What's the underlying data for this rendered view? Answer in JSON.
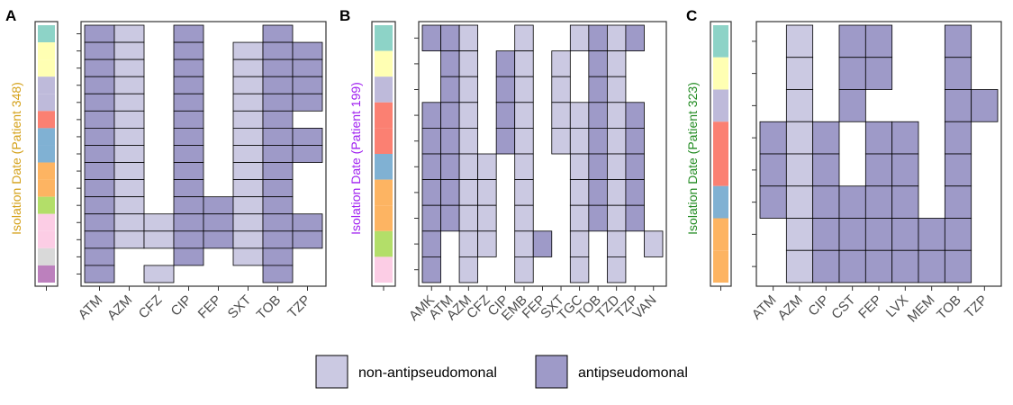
{
  "colors": {
    "non_antipseudomonal": "#cbc9e2",
    "antipseudomonal": "#9e9ac8",
    "tile_border": "#000000",
    "palette": {
      "teal": "#8dd3c7",
      "yellow": "#ffffb3",
      "lavender": "#bebada",
      "red": "#fb8072",
      "blue": "#80b1d3",
      "orange": "#fdb462",
      "green": "#b3de69",
      "pink": "#fccde5",
      "gray": "#d9d9d9",
      "purple": "#bc80bd"
    }
  },
  "legend": {
    "entries": [
      {
        "label": "non-antipseudomonal",
        "color_key": "non_antipseudomonal"
      },
      {
        "label": "antipseudomonal",
        "color_key": "antipseudomonal"
      }
    ]
  },
  "chart_data": [
    {
      "type": "heatmap",
      "panel": "A",
      "ylabel": "Isolation Date (Patient 348)",
      "ylabel_color": "#d4a017",
      "x_categories": [
        "ATM",
        "AZM",
        "CFZ",
        "CIP",
        "FEP",
        "SXT",
        "TOB",
        "TZP"
      ],
      "n_rows": 15,
      "date_strip": [
        "teal",
        "yellow",
        "yellow",
        "lavender",
        "lavender",
        "red",
        "blue",
        "blue",
        "orange",
        "orange",
        "green",
        "pink",
        "pink",
        "gray",
        "purple"
      ],
      "cells": [
        [
          "A",
          "N",
          "",
          "A",
          "",
          "",
          "A",
          ""
        ],
        [
          "A",
          "N",
          "",
          "A",
          "",
          "N",
          "A",
          "A"
        ],
        [
          "A",
          "N",
          "",
          "A",
          "",
          "N",
          "A",
          "A"
        ],
        [
          "A",
          "N",
          "",
          "A",
          "",
          "N",
          "A",
          "A"
        ],
        [
          "A",
          "N",
          "",
          "A",
          "",
          "N",
          "A",
          "A"
        ],
        [
          "A",
          "N",
          "",
          "A",
          "",
          "N",
          "A",
          ""
        ],
        [
          "A",
          "N",
          "",
          "A",
          "",
          "N",
          "A",
          "A"
        ],
        [
          "A",
          "N",
          "",
          "A",
          "",
          "N",
          "A",
          "A"
        ],
        [
          "A",
          "N",
          "",
          "A",
          "",
          "N",
          "A",
          ""
        ],
        [
          "A",
          "N",
          "",
          "A",
          "",
          "N",
          "A",
          ""
        ],
        [
          "A",
          "N",
          "",
          "A",
          "A",
          "N",
          "A",
          ""
        ],
        [
          "A",
          "N",
          "N",
          "A",
          "A",
          "N",
          "A",
          "A"
        ],
        [
          "A",
          "N",
          "N",
          "A",
          "A",
          "N",
          "A",
          "A"
        ],
        [
          "A",
          "",
          "",
          "A",
          "",
          "N",
          "A",
          ""
        ],
        [
          "A",
          "",
          "N",
          "",
          "",
          "",
          "A",
          ""
        ]
      ]
    },
    {
      "type": "heatmap",
      "panel": "B",
      "ylabel": "Isolation Date (Patient 199)",
      "ylabel_color": "#a020f0",
      "x_categories": [
        "AMK",
        "ATM",
        "AZM",
        "CFZ",
        "CIP",
        "EMB",
        "FEP",
        "SXT",
        "TGC",
        "TOB",
        "TZD",
        "TZP",
        "VAN"
      ],
      "n_rows": 10,
      "date_strip": [
        "teal",
        "yellow",
        "lavender",
        "red",
        "red",
        "blue",
        "orange",
        "orange",
        "green",
        "pink"
      ],
      "cells": [
        [
          "A",
          "A",
          "N",
          "",
          "",
          "N",
          "",
          "",
          "N",
          "A",
          "N",
          "A",
          ""
        ],
        [
          "",
          "A",
          "N",
          "",
          "A",
          "N",
          "",
          "N",
          "",
          "A",
          "N",
          "",
          ""
        ],
        [
          "",
          "A",
          "N",
          "",
          "A",
          "N",
          "",
          "N",
          "",
          "A",
          "N",
          "",
          ""
        ],
        [
          "A",
          "A",
          "N",
          "",
          "A",
          "N",
          "",
          "N",
          "N",
          "A",
          "N",
          "A",
          ""
        ],
        [
          "A",
          "A",
          "N",
          "",
          "A",
          "N",
          "",
          "N",
          "N",
          "A",
          "N",
          "A",
          ""
        ],
        [
          "A",
          "A",
          "N",
          "N",
          "",
          "N",
          "",
          "",
          "N",
          "A",
          "N",
          "A",
          ""
        ],
        [
          "A",
          "A",
          "N",
          "N",
          "",
          "N",
          "",
          "",
          "N",
          "A",
          "N",
          "A",
          ""
        ],
        [
          "A",
          "A",
          "N",
          "N",
          "",
          "N",
          "",
          "",
          "N",
          "A",
          "N",
          "A",
          ""
        ],
        [
          "A",
          "",
          "N",
          "N",
          "",
          "N",
          "A",
          "",
          "N",
          "",
          "N",
          "",
          "N"
        ],
        [
          "A",
          "",
          "N",
          "",
          "",
          "N",
          "",
          "",
          "N",
          "",
          "N",
          "",
          ""
        ]
      ]
    },
    {
      "type": "heatmap",
      "panel": "C",
      "ylabel": "Isolation Date (Patient 323)",
      "ylabel_color": "#228b22",
      "x_categories": [
        "ATM",
        "AZM",
        "CIP",
        "CST",
        "FEP",
        "LVX",
        "MEM",
        "TOB",
        "TZP"
      ],
      "n_rows": 8,
      "date_strip": [
        "teal",
        "yellow",
        "lavender",
        "red",
        "red",
        "blue",
        "orange",
        "orange"
      ],
      "cells": [
        [
          "",
          "N",
          "",
          "A",
          "A",
          "",
          "",
          "A",
          ""
        ],
        [
          "",
          "N",
          "",
          "A",
          "A",
          "",
          "",
          "A",
          ""
        ],
        [
          "",
          "N",
          "",
          "A",
          "",
          "",
          "",
          "A",
          "A"
        ],
        [
          "A",
          "N",
          "A",
          "",
          "A",
          "A",
          "",
          "A",
          ""
        ],
        [
          "A",
          "N",
          "A",
          "",
          "A",
          "A",
          "",
          "A",
          ""
        ],
        [
          "A",
          "N",
          "A",
          "A",
          "A",
          "A",
          "",
          "A",
          ""
        ],
        [
          "",
          "N",
          "A",
          "A",
          "A",
          "A",
          "A",
          "A",
          ""
        ],
        [
          "",
          "N",
          "A",
          "A",
          "A",
          "A",
          "A",
          "A",
          ""
        ]
      ]
    }
  ]
}
